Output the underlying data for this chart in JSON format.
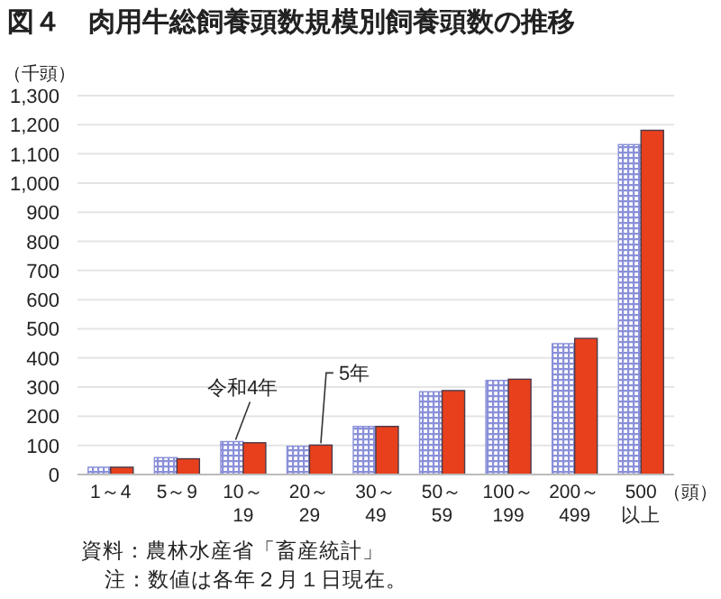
{
  "chart_data": {
    "type": "bar",
    "title": "図４　肉用牛総飼養頭数規模別飼養頭数の推移",
    "ylabel": "（千頭）",
    "xlabel": "（頭）",
    "categories": [
      "1～4",
      "5～9",
      "10～\n19",
      "20～\n29",
      "30～\n49",
      "50～\n59",
      "100～\n199",
      "200～\n499",
      "500\n以上"
    ],
    "series": [
      {
        "name": "令和4年",
        "color": "#8a90d8",
        "values": [
          25,
          58,
          113,
          97,
          165,
          284,
          323,
          449,
          1132
        ]
      },
      {
        "name": "5年",
        "color": "#e8401c",
        "values": [
          25,
          54,
          109,
          101,
          165,
          288,
          327,
          467,
          1181
        ]
      }
    ],
    "ylim": [
      0,
      1300
    ],
    "yticks": [
      0,
      {
        "value": 100,
        "label": "100"
      },
      {
        "value": 200,
        "label": "200"
      },
      {
        "value": 300,
        "label": "300"
      },
      {
        "value": 400,
        "label": "400"
      },
      {
        "value": 500,
        "label": "500"
      },
      {
        "value": 600,
        "label": "600"
      },
      {
        "value": 700,
        "label": "700"
      },
      {
        "value": 800,
        "label": "800"
      },
      {
        "value": 900,
        "label": "900"
      },
      {
        "value": 1000,
        "label": "1,000"
      },
      {
        "value": 1100,
        "label": "1,100"
      },
      {
        "value": 1200,
        "label": "1,200"
      },
      {
        "value": 1300,
        "label": "1,300"
      }
    ],
    "grid": "y",
    "legend": false,
    "annotations": [
      "資料：農林水産省「畜産統計」",
      "注：数値は各年２月１日現在。"
    ]
  }
}
